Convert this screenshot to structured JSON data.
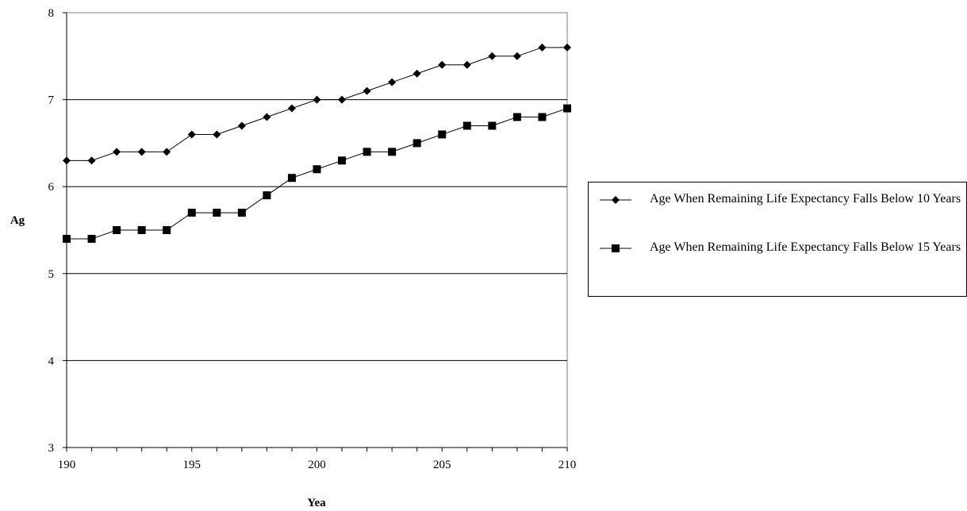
{
  "chart_data": {
    "type": "line",
    "title": "",
    "xlabel": "Yea",
    "ylabel": "Ag",
    "xlim": [
      190,
      210
    ],
    "ylim": [
      3,
      8
    ],
    "x_ticks": [
      "190",
      "195",
      "200",
      "205",
      "210"
    ],
    "y_ticks": [
      "3",
      "4",
      "5",
      "6",
      "7",
      "8"
    ],
    "grid": "horizontal",
    "legend_position": "right",
    "x": [
      190,
      191,
      192,
      193,
      194,
      195,
      196,
      197,
      198,
      199,
      200,
      201,
      202,
      203,
      204,
      205,
      206,
      207,
      208,
      209,
      210
    ],
    "series": [
      {
        "name": "Age When Remaining Life Expectancy Falls Below 10 Years",
        "marker": "diamond",
        "color": "#000000",
        "values": [
          6.3,
          6.3,
          6.4,
          6.4,
          6.4,
          6.6,
          6.6,
          6.7,
          6.8,
          6.9,
          7.0,
          7.0,
          7.1,
          7.2,
          7.3,
          7.4,
          7.4,
          7.5,
          7.5,
          7.6,
          7.6
        ]
      },
      {
        "name": "Age When Remaining Life Expectancy Falls Below 15 Years",
        "marker": "square",
        "color": "#000000",
        "values": [
          5.4,
          5.4,
          5.5,
          5.5,
          5.5,
          5.7,
          5.7,
          5.7,
          5.9,
          6.1,
          6.2,
          6.3,
          6.4,
          6.4,
          6.5,
          6.6,
          6.7,
          6.7,
          6.8,
          6.8,
          6.9
        ]
      }
    ]
  }
}
